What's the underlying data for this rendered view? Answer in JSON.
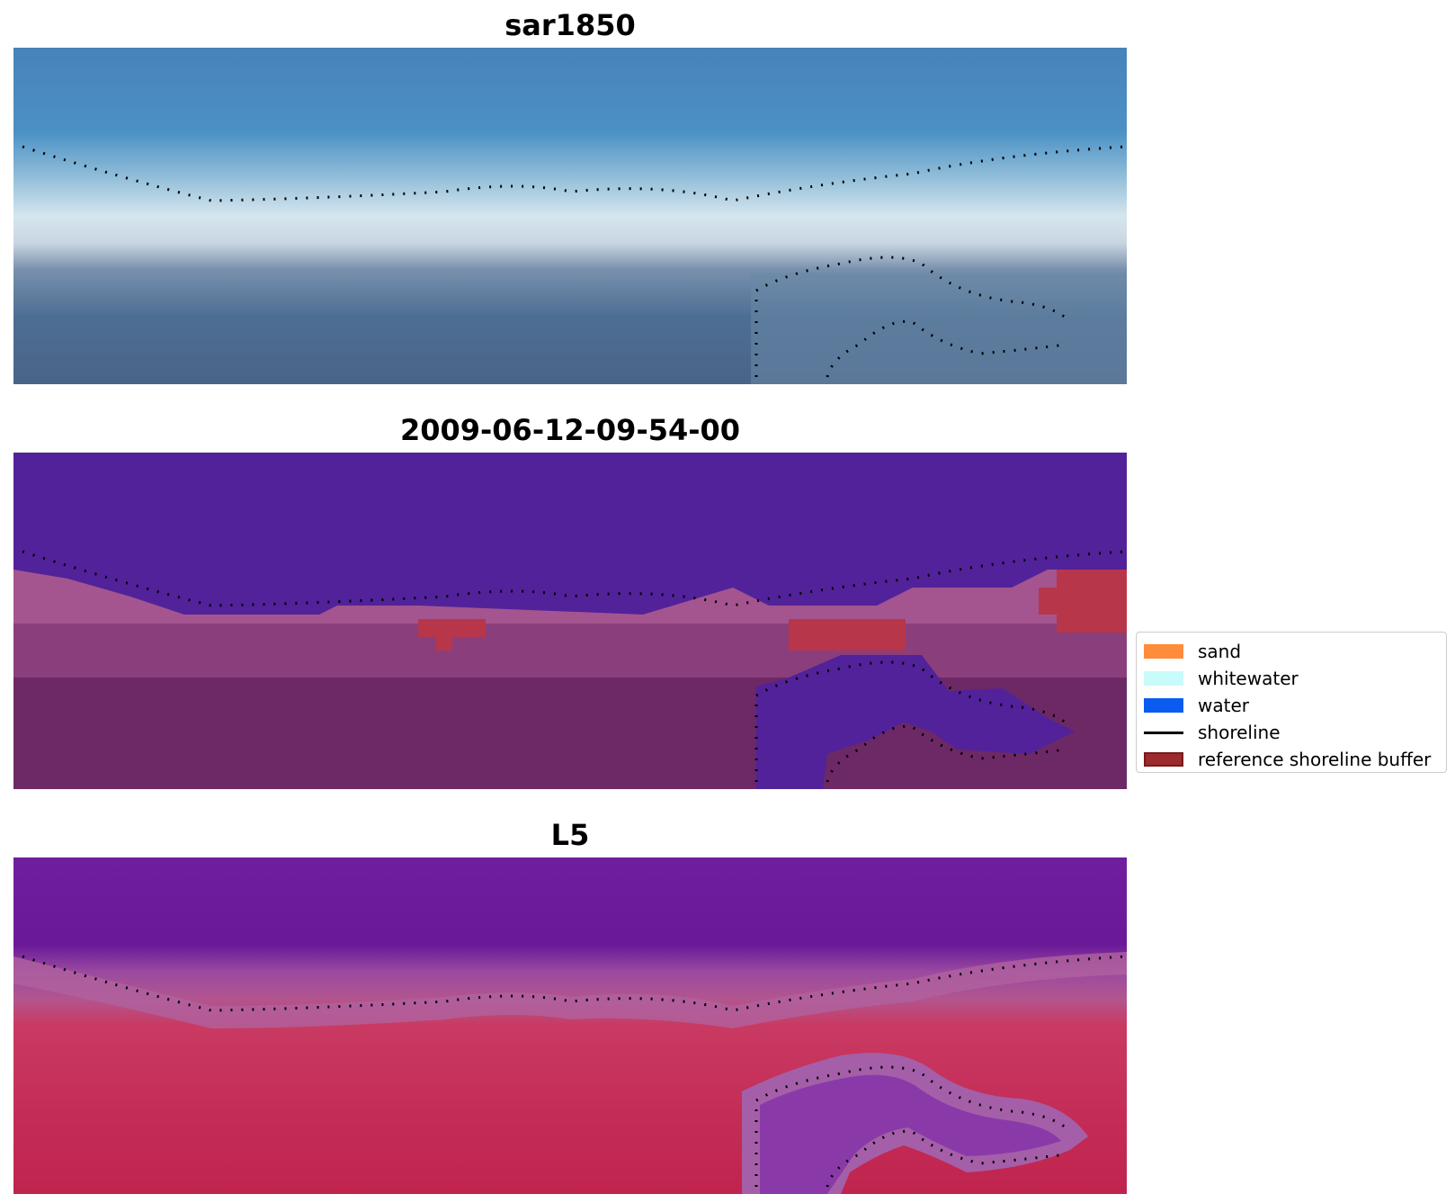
{
  "panels": [
    {
      "title": "sar1850",
      "kind": "rgb"
    },
    {
      "title": "2009-06-12-09-54-00",
      "kind": "classified"
    },
    {
      "title": "L5",
      "kind": "index"
    }
  ],
  "legend": {
    "items": [
      {
        "label": "sand",
        "color": "#ff8c3a",
        "type": "patch"
      },
      {
        "label": "whitewater",
        "color": "#c9fbfb",
        "type": "patch"
      },
      {
        "label": "water",
        "color": "#0a5cf0",
        "type": "patch"
      },
      {
        "label": "shoreline",
        "color": "#000000",
        "type": "line"
      },
      {
        "label": "reference shoreline buffer",
        "color": "#9b2b2e",
        "type": "patch"
      }
    ]
  },
  "colors": {
    "rgb_top": "#4a8fc4",
    "rgb_white": "#e2eef3",
    "rgb_bottom": "#4a6a8e",
    "cls_water": "#52229a",
    "cls_beach": "#a4558f",
    "cls_land": "#6d2866",
    "cls_buffer": "#b8364a",
    "idx_top": "#6b1a9c",
    "idx_mid": "#a0549f",
    "idx_bottom": "#c62d55"
  }
}
